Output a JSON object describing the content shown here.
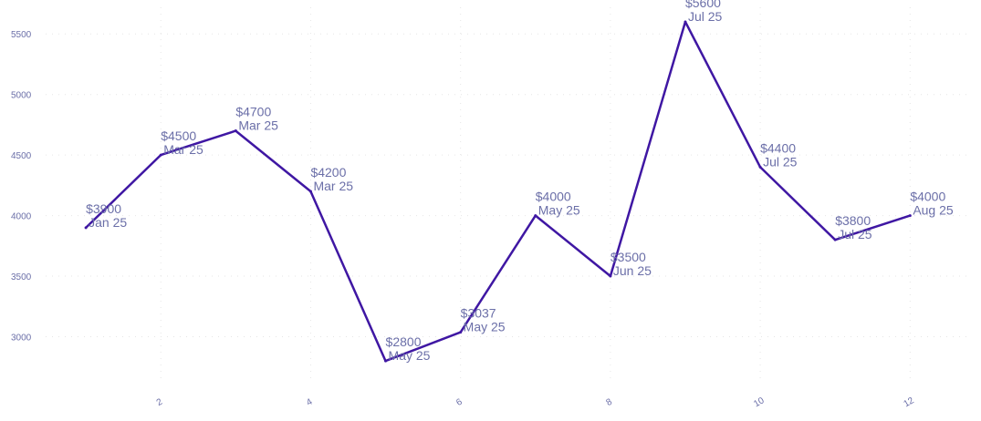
{
  "chart_data": {
    "type": "line",
    "title": "",
    "xlabel": "",
    "ylabel": "",
    "x": [
      1,
      2,
      3,
      4,
      5,
      6,
      7,
      8,
      9,
      10,
      11,
      12
    ],
    "series": [
      {
        "values": [
          3900,
          4500,
          4700,
          4200,
          2800,
          3037,
          4000,
          3500,
          5600,
          4400,
          3800,
          4000
        ],
        "labels": [
          [
            "$3900",
            "Jan 25"
          ],
          [
            "$4500",
            "Mar 25"
          ],
          [
            "$4700",
            "Mar 25"
          ],
          [
            "$4200",
            "Mar 25"
          ],
          [
            "$2800",
            "May 25"
          ],
          [
            "$3037",
            "May 25"
          ],
          [
            "$4000",
            "May 25"
          ],
          [
            "$3500",
            "Jun 25"
          ],
          [
            "$5600",
            "Jul 25"
          ],
          [
            "$4400",
            "Jul 25"
          ],
          [
            "$3800",
            "Jul 25"
          ],
          [
            "$4000",
            "Aug 25"
          ]
        ]
      }
    ],
    "x_ticks": [
      2,
      4,
      6,
      8,
      10,
      12
    ],
    "y_ticks": [
      3000,
      3500,
      4000,
      4500,
      5000,
      5500
    ],
    "xlim": [
      0,
      12.8
    ],
    "ylim": [
      2620,
      5720
    ],
    "grid": true,
    "line_color": "#3f17a3",
    "text_color": "#6b6fa8"
  }
}
